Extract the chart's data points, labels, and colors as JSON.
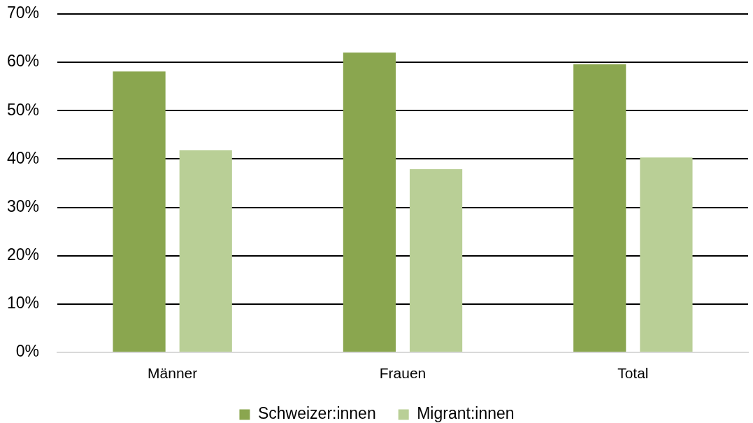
{
  "chart_data": {
    "type": "bar",
    "categories": [
      "Männer",
      "Frauen",
      "Total"
    ],
    "series": [
      {
        "name": "Schweizer:innen",
        "color": "#8aa64f",
        "values": [
          58.1,
          62.0,
          59.6
        ]
      },
      {
        "name": "Migrant:innen",
        "color": "#b9cf96",
        "values": [
          41.8,
          37.9,
          40.3
        ]
      }
    ],
    "ylim": [
      0,
      70
    ],
    "yticks": [
      {
        "value": 0,
        "label": "0%"
      },
      {
        "value": 10,
        "label": "10%"
      },
      {
        "value": 20,
        "label": "20%"
      },
      {
        "value": 30,
        "label": "30%"
      },
      {
        "value": 40,
        "label": "40%"
      },
      {
        "value": 50,
        "label": "50%"
      },
      {
        "value": 60,
        "label": "60%"
      },
      {
        "value": 70,
        "label": "70%"
      }
    ],
    "grid": "y",
    "legend": "bottom"
  }
}
